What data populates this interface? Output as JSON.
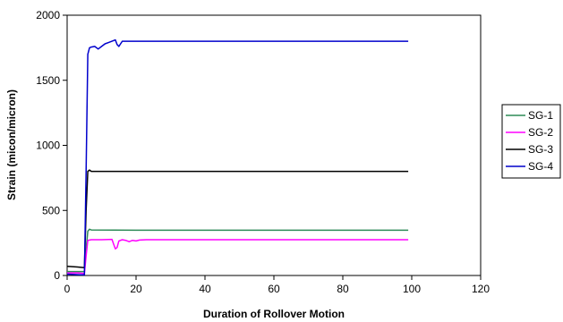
{
  "chart_data": {
    "type": "line",
    "title": "",
    "xlabel": "Duration of Rollover Motion",
    "ylabel": "Strain (micon/micron)",
    "xlim": [
      0,
      120
    ],
    "ylim": [
      0,
      2000
    ],
    "xticks": [
      0,
      20,
      40,
      60,
      80,
      100,
      120
    ],
    "yticks": [
      0,
      500,
      1000,
      1500,
      2000
    ],
    "grid": false,
    "legend_position": "right",
    "series": [
      {
        "name": "SG-1",
        "color": "#2e8b57",
        "points": [
          [
            0,
            30
          ],
          [
            3,
            30
          ],
          [
            5,
            30
          ],
          [
            5.5,
            200
          ],
          [
            6,
            340
          ],
          [
            6.5,
            355
          ],
          [
            7,
            350
          ],
          [
            20,
            348
          ],
          [
            99,
            348
          ]
        ]
      },
      {
        "name": "SG-2",
        "color": "#ff00ff",
        "points": [
          [
            0,
            20
          ],
          [
            3,
            20
          ],
          [
            5,
            15
          ],
          [
            5.5,
            150
          ],
          [
            6,
            270
          ],
          [
            7,
            275
          ],
          [
            10,
            275
          ],
          [
            13,
            278
          ],
          [
            13.5,
            240
          ],
          [
            14,
            205
          ],
          [
            14.5,
            215
          ],
          [
            15,
            265
          ],
          [
            16,
            275
          ],
          [
            17,
            270
          ],
          [
            18,
            260
          ],
          [
            19,
            270
          ],
          [
            20,
            265
          ],
          [
            21,
            272
          ],
          [
            23,
            275
          ],
          [
            99,
            275
          ]
        ]
      },
      {
        "name": "SG-3",
        "color": "#000000",
        "points": [
          [
            0,
            70
          ],
          [
            3,
            65
          ],
          [
            5,
            60
          ],
          [
            5.5,
            500
          ],
          [
            6,
            800
          ],
          [
            6.5,
            810
          ],
          [
            7,
            800
          ],
          [
            99,
            800
          ]
        ]
      },
      {
        "name": "SG-4",
        "color": "#0000cc",
        "points": [
          [
            0,
            10
          ],
          [
            4,
            5
          ],
          [
            5,
            5
          ],
          [
            5.5,
            800
          ],
          [
            6,
            1700
          ],
          [
            6.5,
            1750
          ],
          [
            7,
            1755
          ],
          [
            8,
            1760
          ],
          [
            9,
            1740
          ],
          [
            10,
            1760
          ],
          [
            11,
            1780
          ],
          [
            12,
            1790
          ],
          [
            13,
            1800
          ],
          [
            14,
            1810
          ],
          [
            14.5,
            1775
          ],
          [
            15,
            1760
          ],
          [
            16,
            1800
          ],
          [
            17,
            1800
          ],
          [
            99,
            1800
          ]
        ]
      }
    ]
  }
}
